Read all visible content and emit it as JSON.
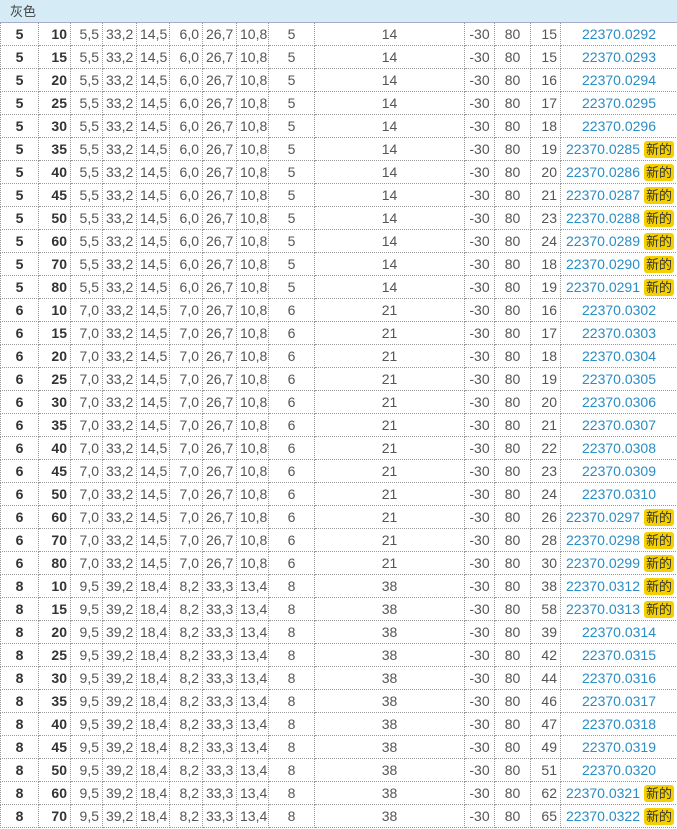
{
  "header": {
    "title": "灰色"
  },
  "badge_label": "新的",
  "colors": {
    "link": "#2a8dc5",
    "badge": "#f5d000",
    "header_bg": "#d5ecf7"
  },
  "rows": [
    [
      "5",
      "10",
      "5,5",
      "33,2",
      "14,5",
      "6,0",
      "26,7",
      "10,8",
      "5",
      "14",
      "-30",
      "80",
      "15",
      "22370.0292",
      false
    ],
    [
      "5",
      "15",
      "5,5",
      "33,2",
      "14,5",
      "6,0",
      "26,7",
      "10,8",
      "5",
      "14",
      "-30",
      "80",
      "15",
      "22370.0293",
      false
    ],
    [
      "5",
      "20",
      "5,5",
      "33,2",
      "14,5",
      "6,0",
      "26,7",
      "10,8",
      "5",
      "14",
      "-30",
      "80",
      "16",
      "22370.0294",
      false
    ],
    [
      "5",
      "25",
      "5,5",
      "33,2",
      "14,5",
      "6,0",
      "26,7",
      "10,8",
      "5",
      "14",
      "-30",
      "80",
      "17",
      "22370.0295",
      false
    ],
    [
      "5",
      "30",
      "5,5",
      "33,2",
      "14,5",
      "6,0",
      "26,7",
      "10,8",
      "5",
      "14",
      "-30",
      "80",
      "18",
      "22370.0296",
      false
    ],
    [
      "5",
      "35",
      "5,5",
      "33,2",
      "14,5",
      "6,0",
      "26,7",
      "10,8",
      "5",
      "14",
      "-30",
      "80",
      "19",
      "22370.0285",
      true
    ],
    [
      "5",
      "40",
      "5,5",
      "33,2",
      "14,5",
      "6,0",
      "26,7",
      "10,8",
      "5",
      "14",
      "-30",
      "80",
      "20",
      "22370.0286",
      true
    ],
    [
      "5",
      "45",
      "5,5",
      "33,2",
      "14,5",
      "6,0",
      "26,7",
      "10,8",
      "5",
      "14",
      "-30",
      "80",
      "21",
      "22370.0287",
      true
    ],
    [
      "5",
      "50",
      "5,5",
      "33,2",
      "14,5",
      "6,0",
      "26,7",
      "10,8",
      "5",
      "14",
      "-30",
      "80",
      "23",
      "22370.0288",
      true
    ],
    [
      "5",
      "60",
      "5,5",
      "33,2",
      "14,5",
      "6,0",
      "26,7",
      "10,8",
      "5",
      "14",
      "-30",
      "80",
      "24",
      "22370.0289",
      true
    ],
    [
      "5",
      "70",
      "5,5",
      "33,2",
      "14,5",
      "6,0",
      "26,7",
      "10,8",
      "5",
      "14",
      "-30",
      "80",
      "18",
      "22370.0290",
      true
    ],
    [
      "5",
      "80",
      "5,5",
      "33,2",
      "14,5",
      "6,0",
      "26,7",
      "10,8",
      "5",
      "14",
      "-30",
      "80",
      "19",
      "22370.0291",
      true
    ],
    [
      "6",
      "10",
      "7,0",
      "33,2",
      "14,5",
      "7,0",
      "26,7",
      "10,8",
      "6",
      "21",
      "-30",
      "80",
      "16",
      "22370.0302",
      false
    ],
    [
      "6",
      "15",
      "7,0",
      "33,2",
      "14,5",
      "7,0",
      "26,7",
      "10,8",
      "6",
      "21",
      "-30",
      "80",
      "17",
      "22370.0303",
      false
    ],
    [
      "6",
      "20",
      "7,0",
      "33,2",
      "14,5",
      "7,0",
      "26,7",
      "10,8",
      "6",
      "21",
      "-30",
      "80",
      "18",
      "22370.0304",
      false
    ],
    [
      "6",
      "25",
      "7,0",
      "33,2",
      "14,5",
      "7,0",
      "26,7",
      "10,8",
      "6",
      "21",
      "-30",
      "80",
      "19",
      "22370.0305",
      false
    ],
    [
      "6",
      "30",
      "7,0",
      "33,2",
      "14,5",
      "7,0",
      "26,7",
      "10,8",
      "6",
      "21",
      "-30",
      "80",
      "20",
      "22370.0306",
      false
    ],
    [
      "6",
      "35",
      "7,0",
      "33,2",
      "14,5",
      "7,0",
      "26,7",
      "10,8",
      "6",
      "21",
      "-30",
      "80",
      "21",
      "22370.0307",
      false
    ],
    [
      "6",
      "40",
      "7,0",
      "33,2",
      "14,5",
      "7,0",
      "26,7",
      "10,8",
      "6",
      "21",
      "-30",
      "80",
      "22",
      "22370.0308",
      false
    ],
    [
      "6",
      "45",
      "7,0",
      "33,2",
      "14,5",
      "7,0",
      "26,7",
      "10,8",
      "6",
      "21",
      "-30",
      "80",
      "23",
      "22370.0309",
      false
    ],
    [
      "6",
      "50",
      "7,0",
      "33,2",
      "14,5",
      "7,0",
      "26,7",
      "10,8",
      "6",
      "21",
      "-30",
      "80",
      "24",
      "22370.0310",
      false
    ],
    [
      "6",
      "60",
      "7,0",
      "33,2",
      "14,5",
      "7,0",
      "26,7",
      "10,8",
      "6",
      "21",
      "-30",
      "80",
      "26",
      "22370.0297",
      true
    ],
    [
      "6",
      "70",
      "7,0",
      "33,2",
      "14,5",
      "7,0",
      "26,7",
      "10,8",
      "6",
      "21",
      "-30",
      "80",
      "28",
      "22370.0298",
      true
    ],
    [
      "6",
      "80",
      "7,0",
      "33,2",
      "14,5",
      "7,0",
      "26,7",
      "10,8",
      "6",
      "21",
      "-30",
      "80",
      "30",
      "22370.0299",
      true
    ],
    [
      "8",
      "10",
      "9,5",
      "39,2",
      "18,4",
      "8,2",
      "33,3",
      "13,4",
      "8",
      "38",
      "-30",
      "80",
      "38",
      "22370.0312",
      true
    ],
    [
      "8",
      "15",
      "9,5",
      "39,2",
      "18,4",
      "8,2",
      "33,3",
      "13,4",
      "8",
      "38",
      "-30",
      "80",
      "58",
      "22370.0313",
      true
    ],
    [
      "8",
      "20",
      "9,5",
      "39,2",
      "18,4",
      "8,2",
      "33,3",
      "13,4",
      "8",
      "38",
      "-30",
      "80",
      "39",
      "22370.0314",
      false
    ],
    [
      "8",
      "25",
      "9,5",
      "39,2",
      "18,4",
      "8,2",
      "33,3",
      "13,4",
      "8",
      "38",
      "-30",
      "80",
      "42",
      "22370.0315",
      false
    ],
    [
      "8",
      "30",
      "9,5",
      "39,2",
      "18,4",
      "8,2",
      "33,3",
      "13,4",
      "8",
      "38",
      "-30",
      "80",
      "44",
      "22370.0316",
      false
    ],
    [
      "8",
      "35",
      "9,5",
      "39,2",
      "18,4",
      "8,2",
      "33,3",
      "13,4",
      "8",
      "38",
      "-30",
      "80",
      "46",
      "22370.0317",
      false
    ],
    [
      "8",
      "40",
      "9,5",
      "39,2",
      "18,4",
      "8,2",
      "33,3",
      "13,4",
      "8",
      "38",
      "-30",
      "80",
      "47",
      "22370.0318",
      false
    ],
    [
      "8",
      "45",
      "9,5",
      "39,2",
      "18,4",
      "8,2",
      "33,3",
      "13,4",
      "8",
      "38",
      "-30",
      "80",
      "49",
      "22370.0319",
      false
    ],
    [
      "8",
      "50",
      "9,5",
      "39,2",
      "18,4",
      "8,2",
      "33,3",
      "13,4",
      "8",
      "38",
      "-30",
      "80",
      "51",
      "22370.0320",
      false
    ],
    [
      "8",
      "60",
      "9,5",
      "39,2",
      "18,4",
      "8,2",
      "33,3",
      "13,4",
      "8",
      "38",
      "-30",
      "80",
      "62",
      "22370.0321",
      true
    ],
    [
      "8",
      "70",
      "9,5",
      "39,2",
      "18,4",
      "8,2",
      "33,3",
      "13,4",
      "8",
      "38",
      "-30",
      "80",
      "65",
      "22370.0322",
      true
    ]
  ]
}
